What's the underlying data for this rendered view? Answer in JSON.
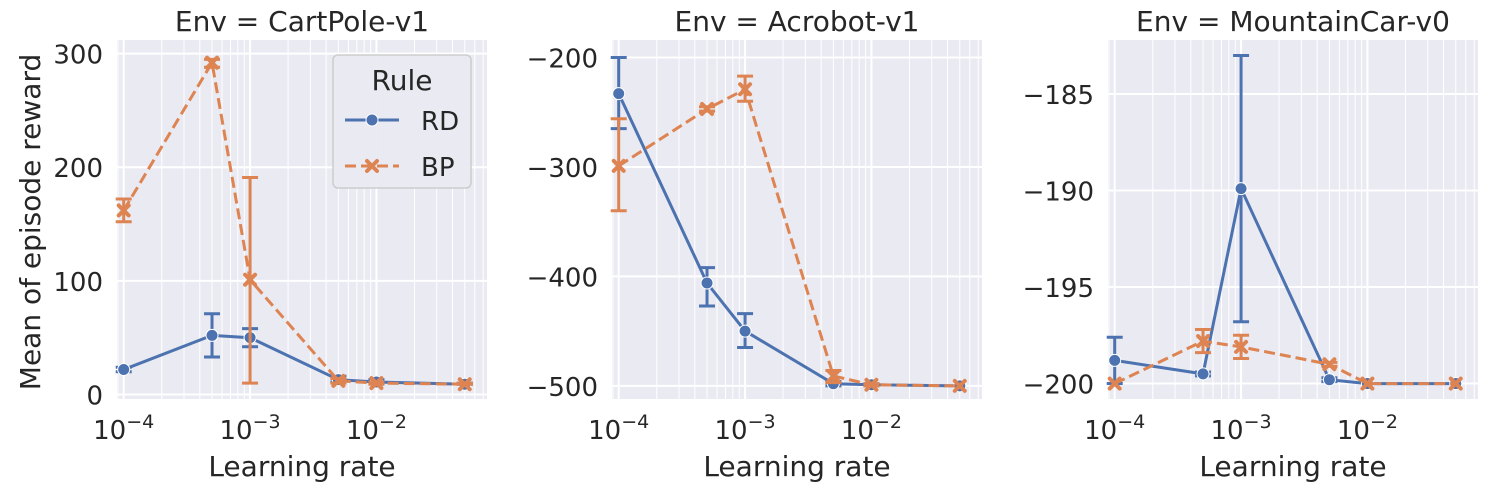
{
  "figure": {
    "ylabel": "Mean of episode reward",
    "xlabel": "Learning rate",
    "legend": {
      "title": "Rule",
      "placement": "top-right of first panel",
      "entries": [
        {
          "name": "RD",
          "color": "#4c72b0",
          "marker": "circle",
          "linestyle": "solid"
        },
        {
          "name": "BP",
          "color": "#dd8452",
          "marker": "x",
          "linestyle": "dashed"
        }
      ]
    },
    "theme": {
      "panel_bg": "#eaeaf2",
      "grid": "white"
    }
  },
  "chart_data": [
    {
      "type": "line",
      "title": "Env = CartPole-v1",
      "xlabel": "Learning rate",
      "ylabel": "Mean of episode reward",
      "xscale": "log",
      "xlim": [
        8.85e-05,
        0.075
      ],
      "ylim": [
        -4,
        312
      ],
      "yticks": [
        0,
        100,
        200,
        300
      ],
      "xticks": [
        0.0001,
        0.001,
        0.01
      ],
      "xticklabels": [
        [
          "10",
          "−4"
        ],
        [
          "10",
          "−3"
        ],
        [
          "10",
          "−2"
        ]
      ],
      "grid": true,
      "series": [
        {
          "name": "RD",
          "x": [
            0.0001,
            0.0005,
            0.001,
            0.005,
            0.01,
            0.05
          ],
          "y": [
            22,
            52,
            50,
            13,
            11,
            9
          ],
          "err_low": [
            20,
            33,
            42,
            11,
            10,
            9
          ],
          "err_high": [
            24,
            71,
            58,
            16,
            13,
            10
          ]
        },
        {
          "name": "BP",
          "x": [
            0.0001,
            0.0005,
            0.001,
            0.005,
            0.01,
            0.05
          ],
          "y": [
            162,
            292,
            101,
            12,
            10,
            9
          ],
          "err_low": [
            152,
            288,
            10,
            10,
            9,
            9
          ],
          "err_high": [
            172,
            295,
            191,
            14,
            11,
            10
          ]
        }
      ]
    },
    {
      "type": "line",
      "title": "Env = Acrobot-v1",
      "xlabel": "Learning rate",
      "xscale": "log",
      "xlim": [
        8.85e-05,
        0.075
      ],
      "ylim": [
        -512,
        -184
      ],
      "yticks": [
        -500,
        -400,
        -300,
        -200
      ],
      "xticks": [
        0.0001,
        0.001,
        0.01
      ],
      "xticklabels": [
        [
          "10",
          "−4"
        ],
        [
          "10",
          "−3"
        ],
        [
          "10",
          "−2"
        ]
      ],
      "grid": true,
      "series": [
        {
          "name": "RD",
          "x": [
            0.0001,
            0.0005,
            0.001,
            0.005,
            0.01,
            0.05
          ],
          "y": [
            -233,
            -406,
            -450,
            -498,
            -499,
            -500
          ],
          "err_low": [
            -265,
            -427,
            -465,
            -500,
            -500,
            -500
          ],
          "err_high": [
            -200,
            -392,
            -434,
            -496,
            -498,
            -500
          ]
        },
        {
          "name": "BP",
          "x": [
            0.0001,
            0.0005,
            0.001,
            0.005,
            0.01,
            0.05
          ],
          "y": [
            -299,
            -247,
            -229,
            -491,
            -499,
            -500
          ],
          "err_low": [
            -340,
            -249,
            -240,
            -497,
            -500,
            -500
          ],
          "err_high": [
            -256,
            -245,
            -217,
            -486,
            -498,
            -500
          ]
        }
      ]
    },
    {
      "type": "line",
      "title": "Env = MountainCar-v0",
      "xlabel": "Learning rate",
      "xscale": "log",
      "xlim": [
        8.85e-05,
        0.075
      ],
      "ylim": [
        -200.8,
        -182.2
      ],
      "yticks": [
        -200,
        -195,
        -190,
        -185
      ],
      "xticks": [
        0.0001,
        0.001,
        0.01
      ],
      "xticklabels": [
        [
          "10",
          "−4"
        ],
        [
          "10",
          "−3"
        ],
        [
          "10",
          "−2"
        ]
      ],
      "grid": true,
      "series": [
        {
          "name": "RD",
          "x": [
            0.0001,
            0.0005,
            0.001,
            0.005,
            0.01,
            0.05
          ],
          "y": [
            -198.8,
            -199.5,
            -189.9,
            -199.8,
            -200,
            -200
          ],
          "err_low": [
            -200,
            -199.6,
            -196.8,
            -199.9,
            -200,
            -200
          ],
          "err_high": [
            -197.6,
            -199.4,
            -183,
            -199.7,
            -200,
            -200
          ]
        },
        {
          "name": "BP",
          "x": [
            0.0001,
            0.0005,
            0.001,
            0.005,
            0.01,
            0.05
          ],
          "y": [
            -200,
            -197.8,
            -198.1,
            -199,
            -200,
            -200
          ],
          "err_low": [
            -200,
            -198.4,
            -198.7,
            -199.1,
            -200,
            -200
          ],
          "err_high": [
            -200,
            -197.2,
            -197.5,
            -198.9,
            -200,
            -200
          ]
        }
      ]
    }
  ]
}
